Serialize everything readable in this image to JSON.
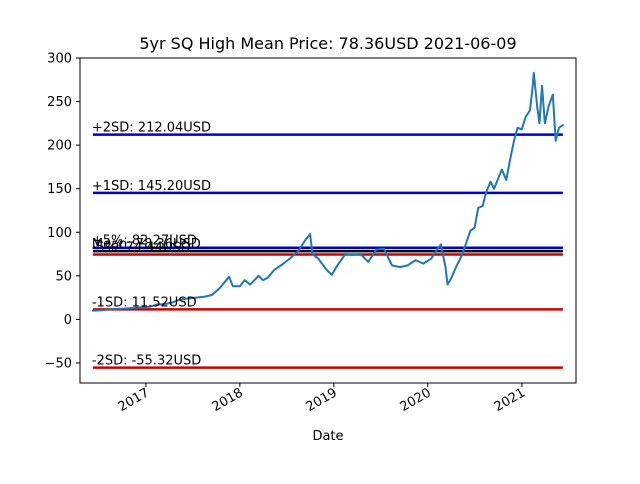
{
  "chart_data": {
    "type": "line",
    "title": "5yr SQ High Mean Price: 78.36USD 2021-06-09",
    "xlabel": "Date",
    "ylabel": "",
    "xlim": [
      "2016-04-20",
      "2021-07-30"
    ],
    "ylim": [
      -73,
      300
    ],
    "x_ticks": [
      "2017",
      "2018",
      "2019",
      "2020",
      "2021"
    ],
    "x_tick_dates": [
      "2017-01-01",
      "2018-01-01",
      "2019-01-01",
      "2020-01-01",
      "2021-01-01"
    ],
    "y_ticks": [
      -50,
      0,
      50,
      100,
      150,
      200,
      250,
      300
    ],
    "grid": false,
    "series": [
      {
        "color": "#1f77b4",
        "points": [
          [
            "2016-06-09",
            10
          ],
          [
            "2016-07-15",
            10.5
          ],
          [
            "2016-09-01",
            12
          ],
          [
            "2016-10-15",
            12.5
          ],
          [
            "2016-12-01",
            13.5
          ],
          [
            "2017-01-15",
            14.5
          ],
          [
            "2017-02-15",
            17
          ],
          [
            "2017-03-15",
            17.5
          ],
          [
            "2017-04-15",
            19.5
          ],
          [
            "2017-05-15",
            23
          ],
          [
            "2017-06-15",
            24
          ],
          [
            "2017-07-15",
            25
          ],
          [
            "2017-08-15",
            26
          ],
          [
            "2017-09-15",
            28
          ],
          [
            "2017-10-15",
            36
          ],
          [
            "2017-11-01",
            42
          ],
          [
            "2017-11-20",
            49
          ],
          [
            "2017-12-05",
            38
          ],
          [
            "2018-01-01",
            38
          ],
          [
            "2018-01-20",
            45
          ],
          [
            "2018-02-10",
            40
          ],
          [
            "2018-03-15",
            50
          ],
          [
            "2018-04-01",
            45
          ],
          [
            "2018-04-20",
            48
          ],
          [
            "2018-05-15",
            57
          ],
          [
            "2018-06-15",
            63
          ],
          [
            "2018-07-15",
            70
          ],
          [
            "2018-08-15",
            78
          ],
          [
            "2018-09-10",
            90
          ],
          [
            "2018-10-01",
            98
          ],
          [
            "2018-10-10",
            75
          ],
          [
            "2018-11-01",
            70
          ],
          [
            "2018-12-01",
            58
          ],
          [
            "2018-12-24",
            51
          ],
          [
            "2019-01-15",
            62
          ],
          [
            "2019-02-15",
            75
          ],
          [
            "2019-03-15",
            74
          ],
          [
            "2019-04-15",
            75
          ],
          [
            "2019-05-15",
            66
          ],
          [
            "2019-06-15",
            80
          ],
          [
            "2019-07-15",
            81
          ],
          [
            "2019-08-15",
            62
          ],
          [
            "2019-09-15",
            60
          ],
          [
            "2019-10-15",
            62
          ],
          [
            "2019-11-15",
            68
          ],
          [
            "2019-12-15",
            64
          ],
          [
            "2020-01-15",
            70
          ],
          [
            "2020-02-10",
            82
          ],
          [
            "2020-02-21",
            86
          ],
          [
            "2020-03-10",
            60
          ],
          [
            "2020-03-18",
            40
          ],
          [
            "2020-04-01",
            47
          ],
          [
            "2020-04-20",
            60
          ],
          [
            "2020-05-15",
            75
          ],
          [
            "2020-06-01",
            90
          ],
          [
            "2020-06-15",
            102
          ],
          [
            "2020-07-01",
            105
          ],
          [
            "2020-07-15",
            128
          ],
          [
            "2020-08-01",
            130
          ],
          [
            "2020-08-15",
            146
          ],
          [
            "2020-09-01",
            158
          ],
          [
            "2020-09-15",
            150
          ],
          [
            "2020-10-01",
            162
          ],
          [
            "2020-10-15",
            172
          ],
          [
            "2020-11-01",
            160
          ],
          [
            "2020-11-15",
            182
          ],
          [
            "2020-12-01",
            205
          ],
          [
            "2020-12-15",
            220
          ],
          [
            "2020-12-31",
            218
          ],
          [
            "2021-01-15",
            232
          ],
          [
            "2021-02-01",
            240
          ],
          [
            "2021-02-10",
            262
          ],
          [
            "2021-02-16",
            283
          ],
          [
            "2021-03-01",
            245
          ],
          [
            "2021-03-10",
            225
          ],
          [
            "2021-03-20",
            268
          ],
          [
            "2021-03-31",
            225
          ],
          [
            "2021-04-15",
            245
          ],
          [
            "2021-05-01",
            258
          ],
          [
            "2021-05-12",
            205
          ],
          [
            "2021-05-25",
            220
          ],
          [
            "2021-06-09",
            223
          ]
        ]
      }
    ],
    "hlines": [
      {
        "label": "+2SD: 212.04USD",
        "y": 212.04,
        "color": "#0000cc"
      },
      {
        "label": "+1SD: 145.20USD",
        "y": 145.2,
        "color": "#0000cc"
      },
      {
        "label": "+5%: 82.27USD",
        "y": 82.27,
        "color": "#0000cc"
      },
      {
        "label": "Mean: 78.36USD",
        "y": 78.36,
        "color": "#000000"
      },
      {
        "label": "-5%: 74.44USD",
        "y": 74.44,
        "color": "#cc0000"
      },
      {
        "label": "-1SD: 11.52USD",
        "y": 11.52,
        "color": "#cc0000"
      },
      {
        "label": "-2SD: -55.32USD",
        "y": -55.32,
        "color": "#cc0000"
      }
    ],
    "hline_range": [
      "2016-06-09",
      "2021-06-09"
    ]
  }
}
